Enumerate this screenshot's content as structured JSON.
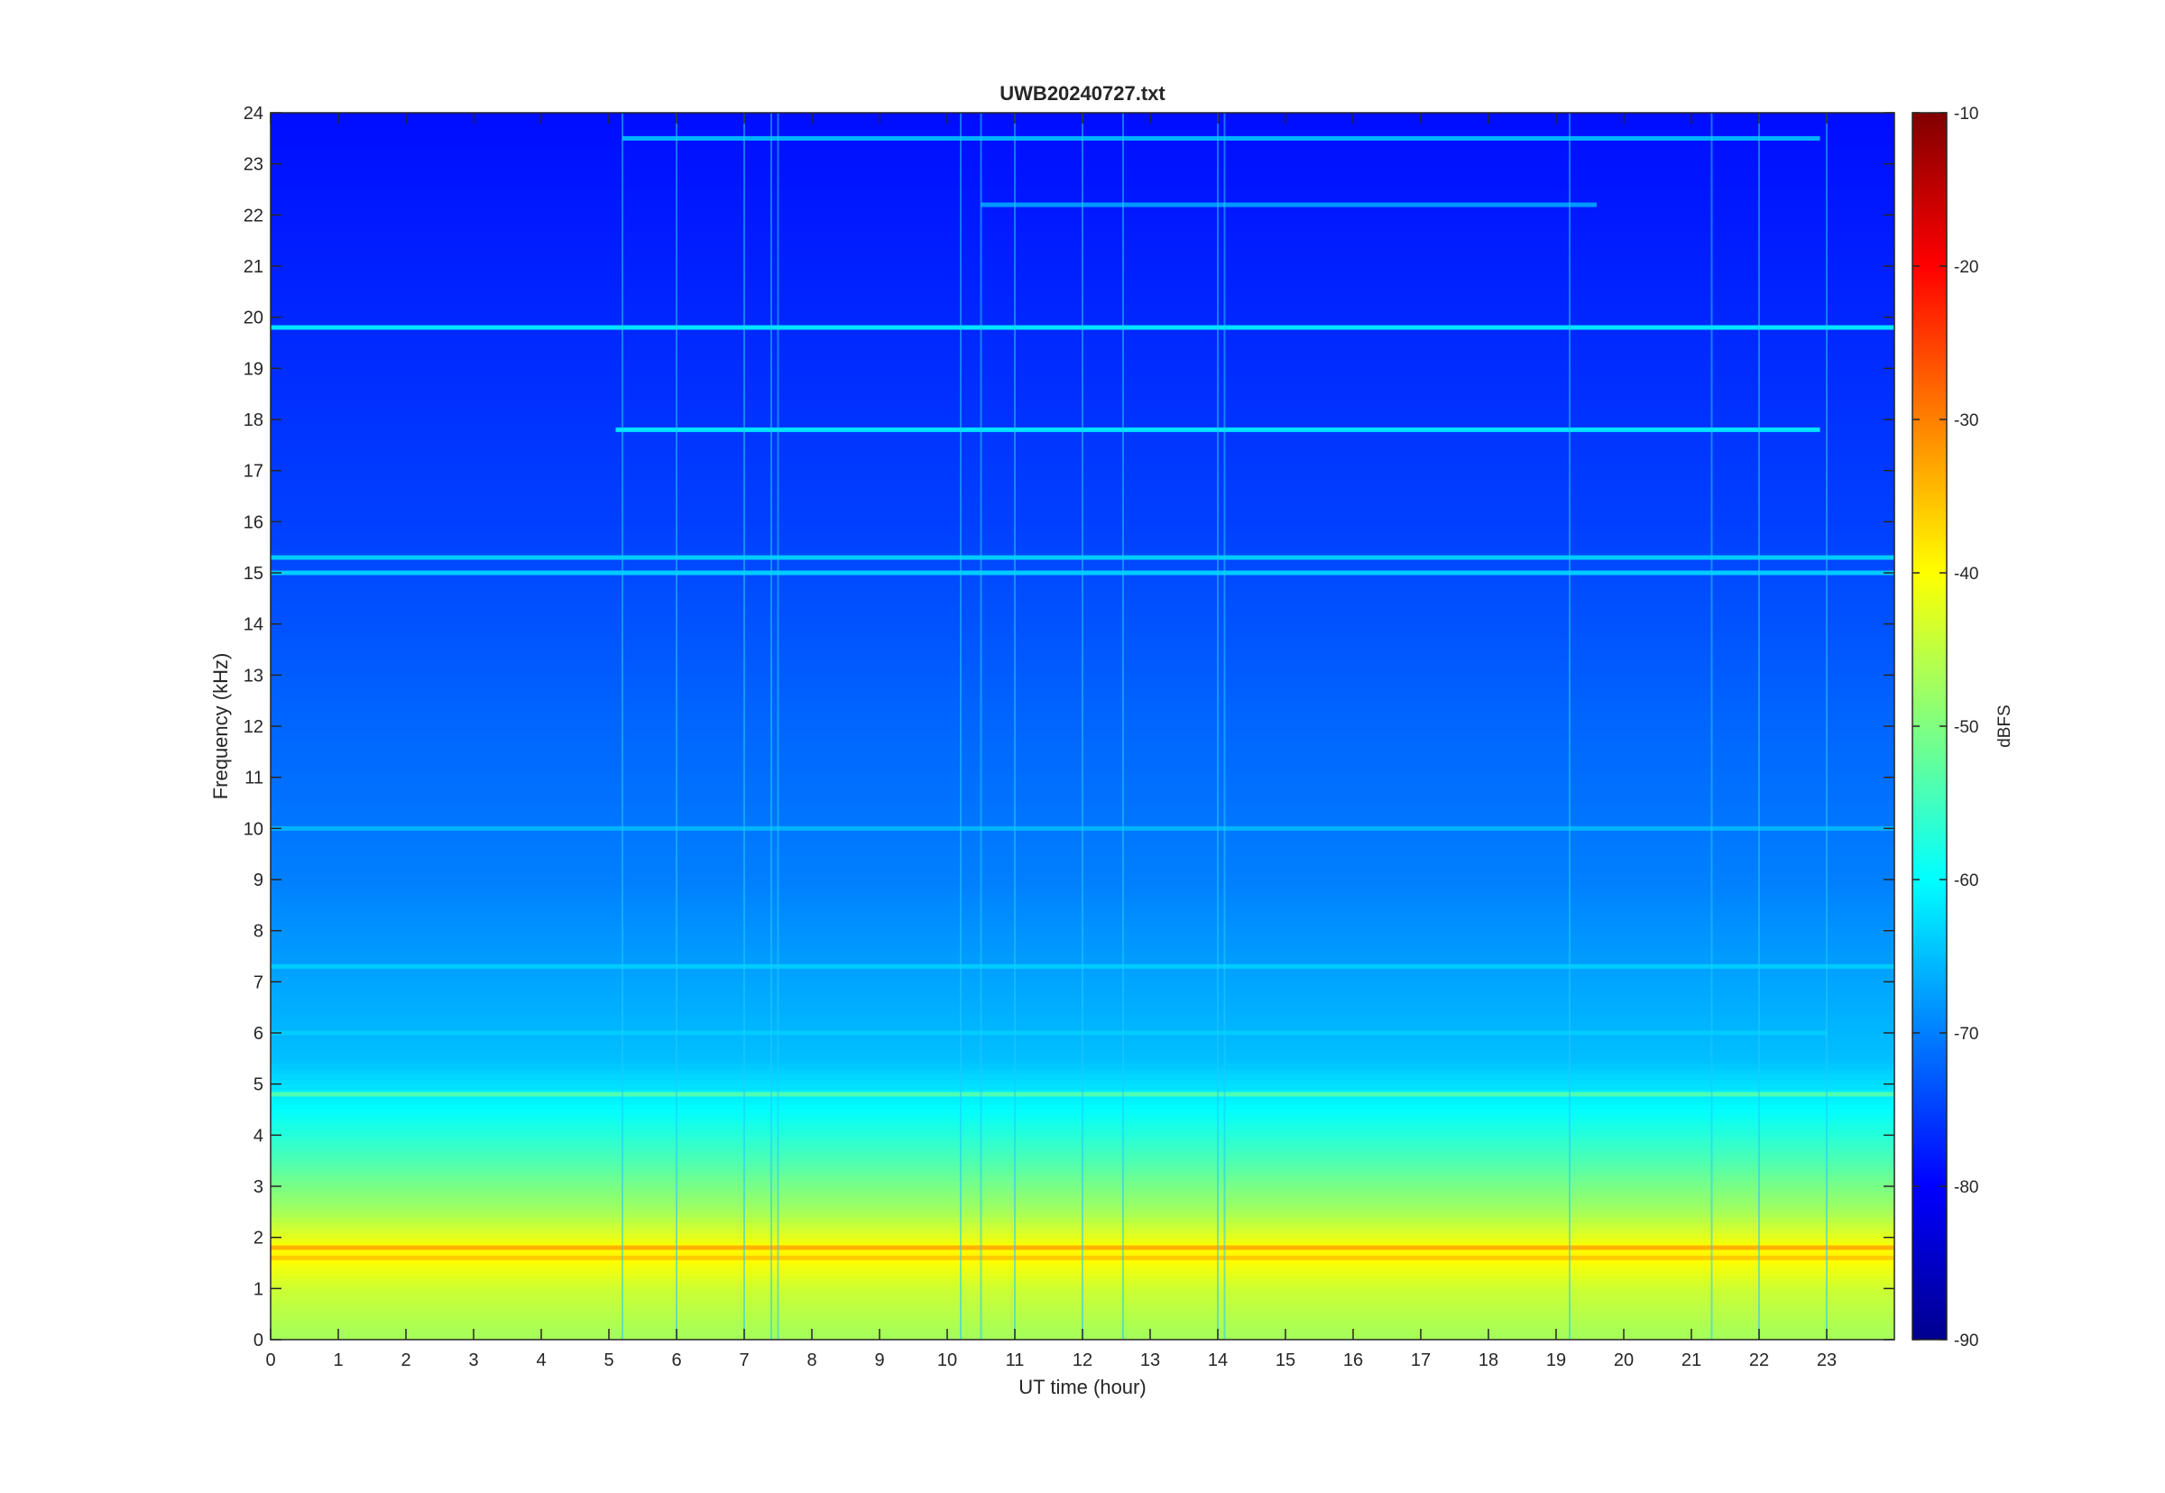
{
  "chart_data": {
    "type": "heatmap",
    "title": "UWB20240727.txt",
    "xlabel": "UT time (hour)",
    "ylabel": "Frequency (kHz)",
    "xlim": [
      0,
      24
    ],
    "ylim": [
      0,
      24
    ],
    "x_ticks": [
      0,
      1,
      2,
      3,
      4,
      5,
      6,
      7,
      8,
      9,
      10,
      11,
      12,
      13,
      14,
      15,
      16,
      17,
      18,
      19,
      20,
      21,
      22,
      23
    ],
    "y_ticks": [
      0,
      1,
      2,
      3,
      4,
      5,
      6,
      7,
      8,
      9,
      10,
      11,
      12,
      13,
      14,
      15,
      16,
      17,
      18,
      19,
      20,
      21,
      22,
      23,
      24
    ],
    "colorbar": {
      "label": "dBFS",
      "range": [
        -90,
        -10
      ],
      "ticks": [
        -10,
        -20,
        -30,
        -40,
        -50,
        -60,
        -70,
        -80,
        -90
      ],
      "colormap": "jet"
    },
    "level_profile_vs_frequency": [
      {
        "freq_khz": 0.1,
        "dbfs": -47
      },
      {
        "freq_khz": 1.0,
        "dbfs": -44
      },
      {
        "freq_khz": 1.7,
        "dbfs": -39
      },
      {
        "freq_khz": 2.5,
        "dbfs": -47
      },
      {
        "freq_khz": 3.5,
        "dbfs": -54
      },
      {
        "freq_khz": 4.5,
        "dbfs": -60
      },
      {
        "freq_khz": 5.5,
        "dbfs": -65
      },
      {
        "freq_khz": 7.0,
        "dbfs": -67
      },
      {
        "freq_khz": 9.0,
        "dbfs": -70
      },
      {
        "freq_khz": 12.0,
        "dbfs": -72
      },
      {
        "freq_khz": 16.0,
        "dbfs": -75
      },
      {
        "freq_khz": 20.0,
        "dbfs": -77
      },
      {
        "freq_khz": 24.0,
        "dbfs": -79
      }
    ],
    "horizontal_lines": [
      {
        "freq_khz": 19.8,
        "t_start": 0,
        "t_end": 24,
        "dbfs": -62
      },
      {
        "freq_khz": 17.8,
        "t_start": 5.1,
        "t_end": 22.9,
        "dbfs": -62
      },
      {
        "freq_khz": 23.5,
        "t_start": 5.2,
        "t_end": 22.9,
        "dbfs": -66
      },
      {
        "freq_khz": 22.2,
        "t_start": 10.5,
        "t_end": 19.6,
        "dbfs": -68
      },
      {
        "freq_khz": 15.3,
        "t_start": 0,
        "t_end": 24,
        "dbfs": -64
      },
      {
        "freq_khz": 15.0,
        "t_start": 0,
        "t_end": 24,
        "dbfs": -64
      },
      {
        "freq_khz": 10.0,
        "t_start": 0,
        "t_end": 24,
        "dbfs": -66
      },
      {
        "freq_khz": 6.0,
        "t_start": 0,
        "t_end": 23,
        "dbfs": -64
      },
      {
        "freq_khz": 7.3,
        "t_start": 0,
        "t_end": 24,
        "dbfs": -64
      },
      {
        "freq_khz": 4.8,
        "t_start": 0,
        "t_end": 24,
        "dbfs": -54
      },
      {
        "freq_khz": 1.8,
        "t_start": 0,
        "t_end": 24,
        "dbfs": -34
      },
      {
        "freq_khz": 1.6,
        "t_start": 0,
        "t_end": 24,
        "dbfs": -36
      }
    ],
    "vertical_streaks_hours": [
      5.2,
      6.0,
      7.0,
      7.4,
      7.5,
      10.2,
      10.5,
      11.0,
      12.0,
      12.6,
      14.0,
      14.1,
      19.2,
      21.3,
      22.0,
      23.0
    ]
  }
}
